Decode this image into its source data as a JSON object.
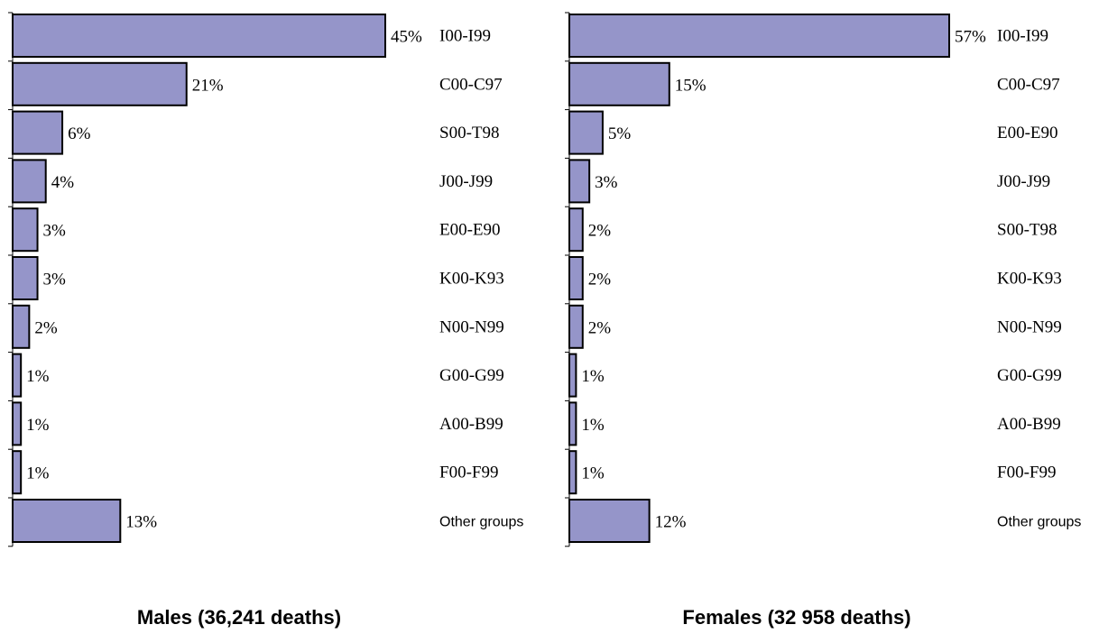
{
  "chart_data": [
    {
      "type": "bar",
      "orientation": "horizontal",
      "title": "Males (36,241 deaths)",
      "categories": [
        "I00-I99",
        "C00-C97",
        "S00-T98",
        "J00-J99",
        "E00-E90",
        "K00-K93",
        "N00-N99",
        "G00-G99",
        "A00-B99",
        "F00-F99",
        "Other groups"
      ],
      "values": [
        45,
        21,
        6,
        4,
        3,
        3,
        2,
        1,
        1,
        1,
        13
      ],
      "value_labels": [
        "45%",
        "21%",
        "6%",
        "4%",
        "3%",
        "3%",
        "2%",
        "1%",
        "1%",
        "1%",
        "13%"
      ],
      "xlim": [
        0,
        45
      ],
      "grid": false,
      "bar_color": "#9595c9"
    },
    {
      "type": "bar",
      "orientation": "horizontal",
      "title": "Females (32 958 deaths)",
      "categories": [
        "I00-I99",
        "C00-C97",
        "E00-E90",
        "J00-J99",
        "S00-T98",
        "K00-K93",
        "N00-N99",
        "G00-G99",
        "A00-B99",
        "F00-F99",
        "Other groups"
      ],
      "values": [
        57,
        15,
        5,
        3,
        2,
        2,
        2,
        1,
        1,
        1,
        12
      ],
      "value_labels": [
        "57%",
        "15%",
        "5%",
        "3%",
        "2%",
        "2%",
        "2%",
        "1%",
        "1%",
        "1%",
        "12%"
      ],
      "xlim": [
        0,
        57
      ],
      "grid": false,
      "bar_color": "#9595c9"
    }
  ]
}
